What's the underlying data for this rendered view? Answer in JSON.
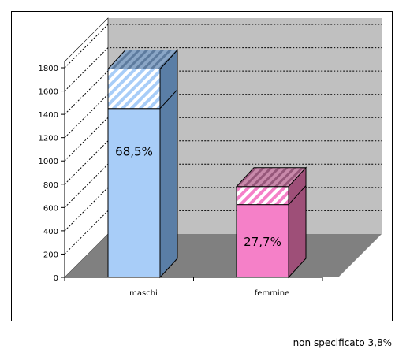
{
  "chart_data": {
    "type": "bar",
    "stacked": true,
    "three_d": true,
    "categories": [
      "maschi",
      "femmine"
    ],
    "series": [
      {
        "values": [
          1450,
          625
        ],
        "colors": [
          "#a8cdf8",
          "#f580c8"
        ]
      },
      {
        "values": [
          340,
          155
        ],
        "colors": [
          "#c4dcfa",
          "#fbc4e4"
        ],
        "hatched": true
      }
    ],
    "value_labels": [
      "68,5%",
      "27,7%"
    ],
    "ylim": [
      0,
      1800
    ],
    "yticks": [
      0,
      200,
      400,
      600,
      800,
      1000,
      1200,
      1400,
      1600,
      1800
    ],
    "grid": "dotted",
    "floor_color": "#808080",
    "wall_color": "#c0c0c0"
  },
  "footnote": "non specificato 3,8%"
}
